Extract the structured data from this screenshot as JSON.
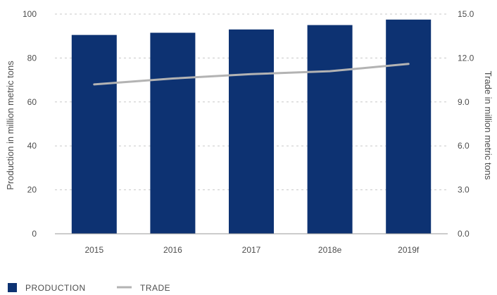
{
  "chart_data": {
    "type": "bar",
    "categories": [
      "2015",
      "2016",
      "2017",
      "2018e",
      "2019f"
    ],
    "series": [
      {
        "name": "PRODUCTION",
        "type": "bar",
        "axis": "left",
        "values": [
          90.5,
          91.5,
          93,
          95,
          97.5
        ]
      },
      {
        "name": "TRADE",
        "type": "line",
        "axis": "right",
        "values": [
          10.2,
          10.6,
          10.9,
          11.1,
          11.6
        ]
      }
    ],
    "ylabel": "Production in million metric tons",
    "y2label": "Trade in million metric tons",
    "ylim": [
      0,
      100
    ],
    "y2lim": [
      0,
      15
    ],
    "yticks": [
      "0",
      "20",
      "40",
      "60",
      "80",
      "100"
    ],
    "y2ticks": [
      "0.0",
      "3.0",
      "6.0",
      "9.0",
      "12.0",
      "15.0"
    ],
    "legend": [
      {
        "label": "PRODUCTION",
        "marker": "square"
      },
      {
        "label": "TRADE",
        "marker": "line"
      }
    ],
    "legend_position": "bottom-left",
    "grid": "horizontal-dashed",
    "colors": {
      "production": "#0d3272",
      "trade": "#b3b3b3",
      "grid": "#c8c8c8",
      "axis": "#9a9a9a",
      "text": "#4d4d4d"
    }
  }
}
